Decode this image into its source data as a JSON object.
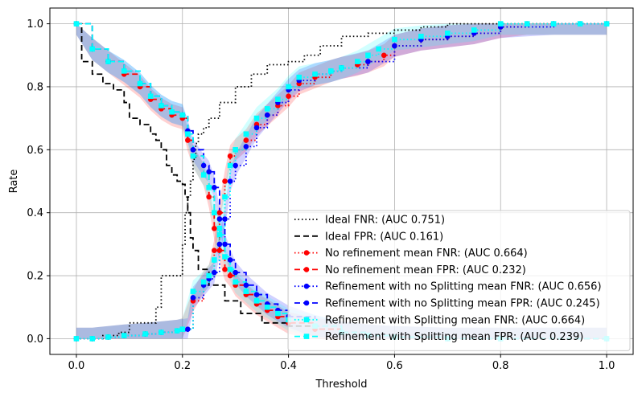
{
  "chart_data": {
    "type": "line",
    "title": "",
    "xlabel": "Threshold",
    "ylabel": "Rate",
    "xlim": [
      -0.05,
      1.05
    ],
    "ylim": [
      -0.05,
      1.05
    ],
    "grid": true,
    "legend_position": "lower-right",
    "x_ticks": [
      0.0,
      0.2,
      0.4,
      0.6,
      0.8,
      1.0
    ],
    "x_tick_labels": [
      "0.0",
      "0.2",
      "0.4",
      "0.6",
      "0.8",
      "1.0"
    ],
    "y_ticks": [
      0.0,
      0.2,
      0.4,
      0.6,
      0.8,
      1.0
    ],
    "y_tick_labels": [
      "0.0",
      "0.2",
      "0.4",
      "0.6",
      "0.8",
      "1.0"
    ],
    "series": [
      {
        "name": "Ideal FNR: (AUC 0.751)",
        "color": "#000000",
        "dash": "dotted",
        "marker": "none",
        "band": false,
        "x": [
          0,
          0.05,
          0.08,
          0.1,
          0.15,
          0.16,
          0.19,
          0.2,
          0.205,
          0.21,
          0.215,
          0.22,
          0.225,
          0.23,
          0.24,
          0.25,
          0.27,
          0.3,
          0.33,
          0.36,
          0.4,
          0.43,
          0.46,
          0.5,
          0.55,
          0.6,
          0.65,
          0.7,
          0.75,
          0.8,
          1.0
        ],
        "y": [
          0,
          0.01,
          0.02,
          0.05,
          0.1,
          0.2,
          0.2,
          0.3,
          0.4,
          0.45,
          0.5,
          0.57,
          0.62,
          0.65,
          0.67,
          0.7,
          0.75,
          0.8,
          0.84,
          0.87,
          0.88,
          0.9,
          0.93,
          0.96,
          0.97,
          0.98,
          0.99,
          1.0,
          1.0,
          1.0,
          1.0
        ]
      },
      {
        "name": "Ideal FPR: (AUC 0.161)",
        "color": "#000000",
        "dash": "dashed",
        "marker": "none",
        "band": false,
        "x": [
          0,
          0.01,
          0.03,
          0.05,
          0.07,
          0.09,
          0.1,
          0.12,
          0.14,
          0.15,
          0.16,
          0.17,
          0.18,
          0.19,
          0.2,
          0.205,
          0.21,
          0.215,
          0.22,
          0.23,
          0.25,
          0.28,
          0.31,
          0.35,
          0.4,
          0.45,
          0.5,
          0.55,
          0.6,
          0.7,
          0.8,
          1.0
        ],
        "y": [
          1.0,
          0.88,
          0.84,
          0.81,
          0.79,
          0.75,
          0.7,
          0.68,
          0.65,
          0.63,
          0.6,
          0.55,
          0.52,
          0.5,
          0.49,
          0.45,
          0.4,
          0.32,
          0.28,
          0.22,
          0.17,
          0.12,
          0.08,
          0.05,
          0.04,
          0.03,
          0.02,
          0.01,
          0.005,
          0.0,
          0.0,
          0.0
        ]
      },
      {
        "name": "No refinement mean FNR: (AUC 0.664)",
        "color": "#ff0000",
        "dash": "dotted",
        "marker": "circle",
        "band": true,
        "x": [
          0,
          0.03,
          0.06,
          0.09,
          0.13,
          0.16,
          0.19,
          0.2,
          0.22,
          0.24,
          0.25,
          0.26,
          0.27,
          0.28,
          0.29,
          0.3,
          0.32,
          0.34,
          0.36,
          0.38,
          0.4,
          0.42,
          0.45,
          0.48,
          0.5,
          0.53,
          0.55,
          0.58,
          0.6,
          0.65,
          0.7,
          0.75,
          0.8,
          0.85,
          0.9,
          0.95,
          1.0
        ],
        "y": [
          0,
          0.0,
          0.005,
          0.01,
          0.015,
          0.02,
          0.025,
          0.03,
          0.12,
          0.18,
          0.2,
          0.28,
          0.4,
          0.5,
          0.58,
          0.6,
          0.63,
          0.68,
          0.71,
          0.74,
          0.77,
          0.81,
          0.83,
          0.85,
          0.86,
          0.87,
          0.88,
          0.9,
          0.93,
          0.95,
          0.96,
          0.97,
          0.99,
          1.0,
          1.0,
          1.0,
          1.0
        ]
      },
      {
        "name": "No refinement mean FPR: (AUC 0.232)",
        "color": "#ff0000",
        "dash": "dashed",
        "marker": "circle",
        "band": true,
        "x": [
          0,
          0.03,
          0.06,
          0.09,
          0.12,
          0.14,
          0.16,
          0.18,
          0.2,
          0.21,
          0.22,
          0.24,
          0.25,
          0.26,
          0.27,
          0.28,
          0.29,
          0.3,
          0.32,
          0.34,
          0.36,
          0.38,
          0.4,
          0.45,
          0.5,
          0.55,
          0.6,
          0.7,
          0.8,
          1.0
        ],
        "y": [
          1.0,
          0.92,
          0.88,
          0.84,
          0.8,
          0.76,
          0.73,
          0.71,
          0.7,
          0.63,
          0.58,
          0.52,
          0.45,
          0.35,
          0.28,
          0.22,
          0.2,
          0.17,
          0.14,
          0.11,
          0.09,
          0.07,
          0.05,
          0.03,
          0.02,
          0.01,
          0.005,
          0.0,
          0.0,
          0.0
        ]
      },
      {
        "name": "Refinement with no Splitting mean FNR: (AUC 0.656)",
        "color": "#0000ff",
        "dash": "dotted",
        "marker": "circle",
        "band": true,
        "x": [
          0,
          0.03,
          0.06,
          0.09,
          0.13,
          0.16,
          0.19,
          0.21,
          0.22,
          0.24,
          0.25,
          0.26,
          0.27,
          0.28,
          0.29,
          0.3,
          0.32,
          0.34,
          0.36,
          0.38,
          0.4,
          0.42,
          0.45,
          0.48,
          0.5,
          0.55,
          0.6,
          0.65,
          0.7,
          0.75,
          0.8,
          0.9,
          1.0
        ],
        "y": [
          0,
          0.0,
          0.005,
          0.01,
          0.015,
          0.02,
          0.025,
          0.03,
          0.13,
          0.17,
          0.19,
          0.21,
          0.3,
          0.38,
          0.5,
          0.55,
          0.61,
          0.67,
          0.71,
          0.75,
          0.79,
          0.82,
          0.84,
          0.85,
          0.86,
          0.88,
          0.93,
          0.95,
          0.96,
          0.97,
          0.99,
          1.0,
          1.0
        ]
      },
      {
        "name": "Refinement with no Splitting mean FPR: (AUC 0.245)",
        "color": "#0000ff",
        "dash": "dashed",
        "marker": "circle",
        "band": true,
        "x": [
          0,
          0.03,
          0.06,
          0.09,
          0.12,
          0.14,
          0.16,
          0.18,
          0.2,
          0.21,
          0.22,
          0.24,
          0.25,
          0.26,
          0.27,
          0.28,
          0.29,
          0.3,
          0.32,
          0.34,
          0.36,
          0.38,
          0.4,
          0.45,
          0.5,
          0.55,
          0.6,
          0.7,
          0.8,
          1.0
        ],
        "y": [
          1.0,
          0.92,
          0.88,
          0.85,
          0.81,
          0.77,
          0.74,
          0.72,
          0.71,
          0.66,
          0.6,
          0.55,
          0.53,
          0.48,
          0.38,
          0.3,
          0.25,
          0.21,
          0.17,
          0.14,
          0.11,
          0.09,
          0.07,
          0.04,
          0.02,
          0.01,
          0.005,
          0.0,
          0.0,
          0.0
        ]
      },
      {
        "name": "Refinement with Splitting mean FNR: (AUC 0.664)",
        "color": "#00ffff",
        "dash": "dotted",
        "marker": "square",
        "band": true,
        "x": [
          0,
          0.03,
          0.06,
          0.09,
          0.13,
          0.16,
          0.19,
          0.2,
          0.22,
          0.24,
          0.25,
          0.26,
          0.27,
          0.28,
          0.29,
          0.3,
          0.32,
          0.34,
          0.36,
          0.38,
          0.4,
          0.42,
          0.45,
          0.48,
          0.5,
          0.53,
          0.55,
          0.57,
          0.6,
          0.65,
          0.7,
          0.75,
          0.8,
          0.85,
          0.9,
          0.95,
          1.0
        ],
        "y": [
          0,
          0.0,
          0.005,
          0.01,
          0.015,
          0.02,
          0.025,
          0.03,
          0.15,
          0.18,
          0.2,
          0.25,
          0.35,
          0.45,
          0.55,
          0.6,
          0.65,
          0.7,
          0.73,
          0.76,
          0.8,
          0.83,
          0.84,
          0.85,
          0.86,
          0.88,
          0.9,
          0.92,
          0.95,
          0.96,
          0.97,
          0.98,
          1.0,
          1.0,
          1.0,
          1.0,
          1.0
        ]
      },
      {
        "name": "Refinement with Splitting mean FPR: (AUC 0.239)",
        "color": "#00ffff",
        "dash": "dashed",
        "marker": "square",
        "band": true,
        "x": [
          0,
          0.03,
          0.06,
          0.09,
          0.12,
          0.14,
          0.16,
          0.18,
          0.2,
          0.21,
          0.22,
          0.24,
          0.25,
          0.26,
          0.27,
          0.28,
          0.29,
          0.3,
          0.32,
          0.34,
          0.36,
          0.38,
          0.4,
          0.45,
          0.5,
          0.55,
          0.6,
          0.7,
          0.8,
          1.0
        ],
        "y": [
          1.0,
          0.92,
          0.88,
          0.85,
          0.81,
          0.77,
          0.74,
          0.72,
          0.71,
          0.65,
          0.58,
          0.52,
          0.48,
          0.4,
          0.33,
          0.26,
          0.22,
          0.18,
          0.15,
          0.12,
          0.1,
          0.08,
          0.06,
          0.04,
          0.02,
          0.01,
          0.005,
          0.0,
          0.0,
          0.0
        ]
      }
    ]
  }
}
